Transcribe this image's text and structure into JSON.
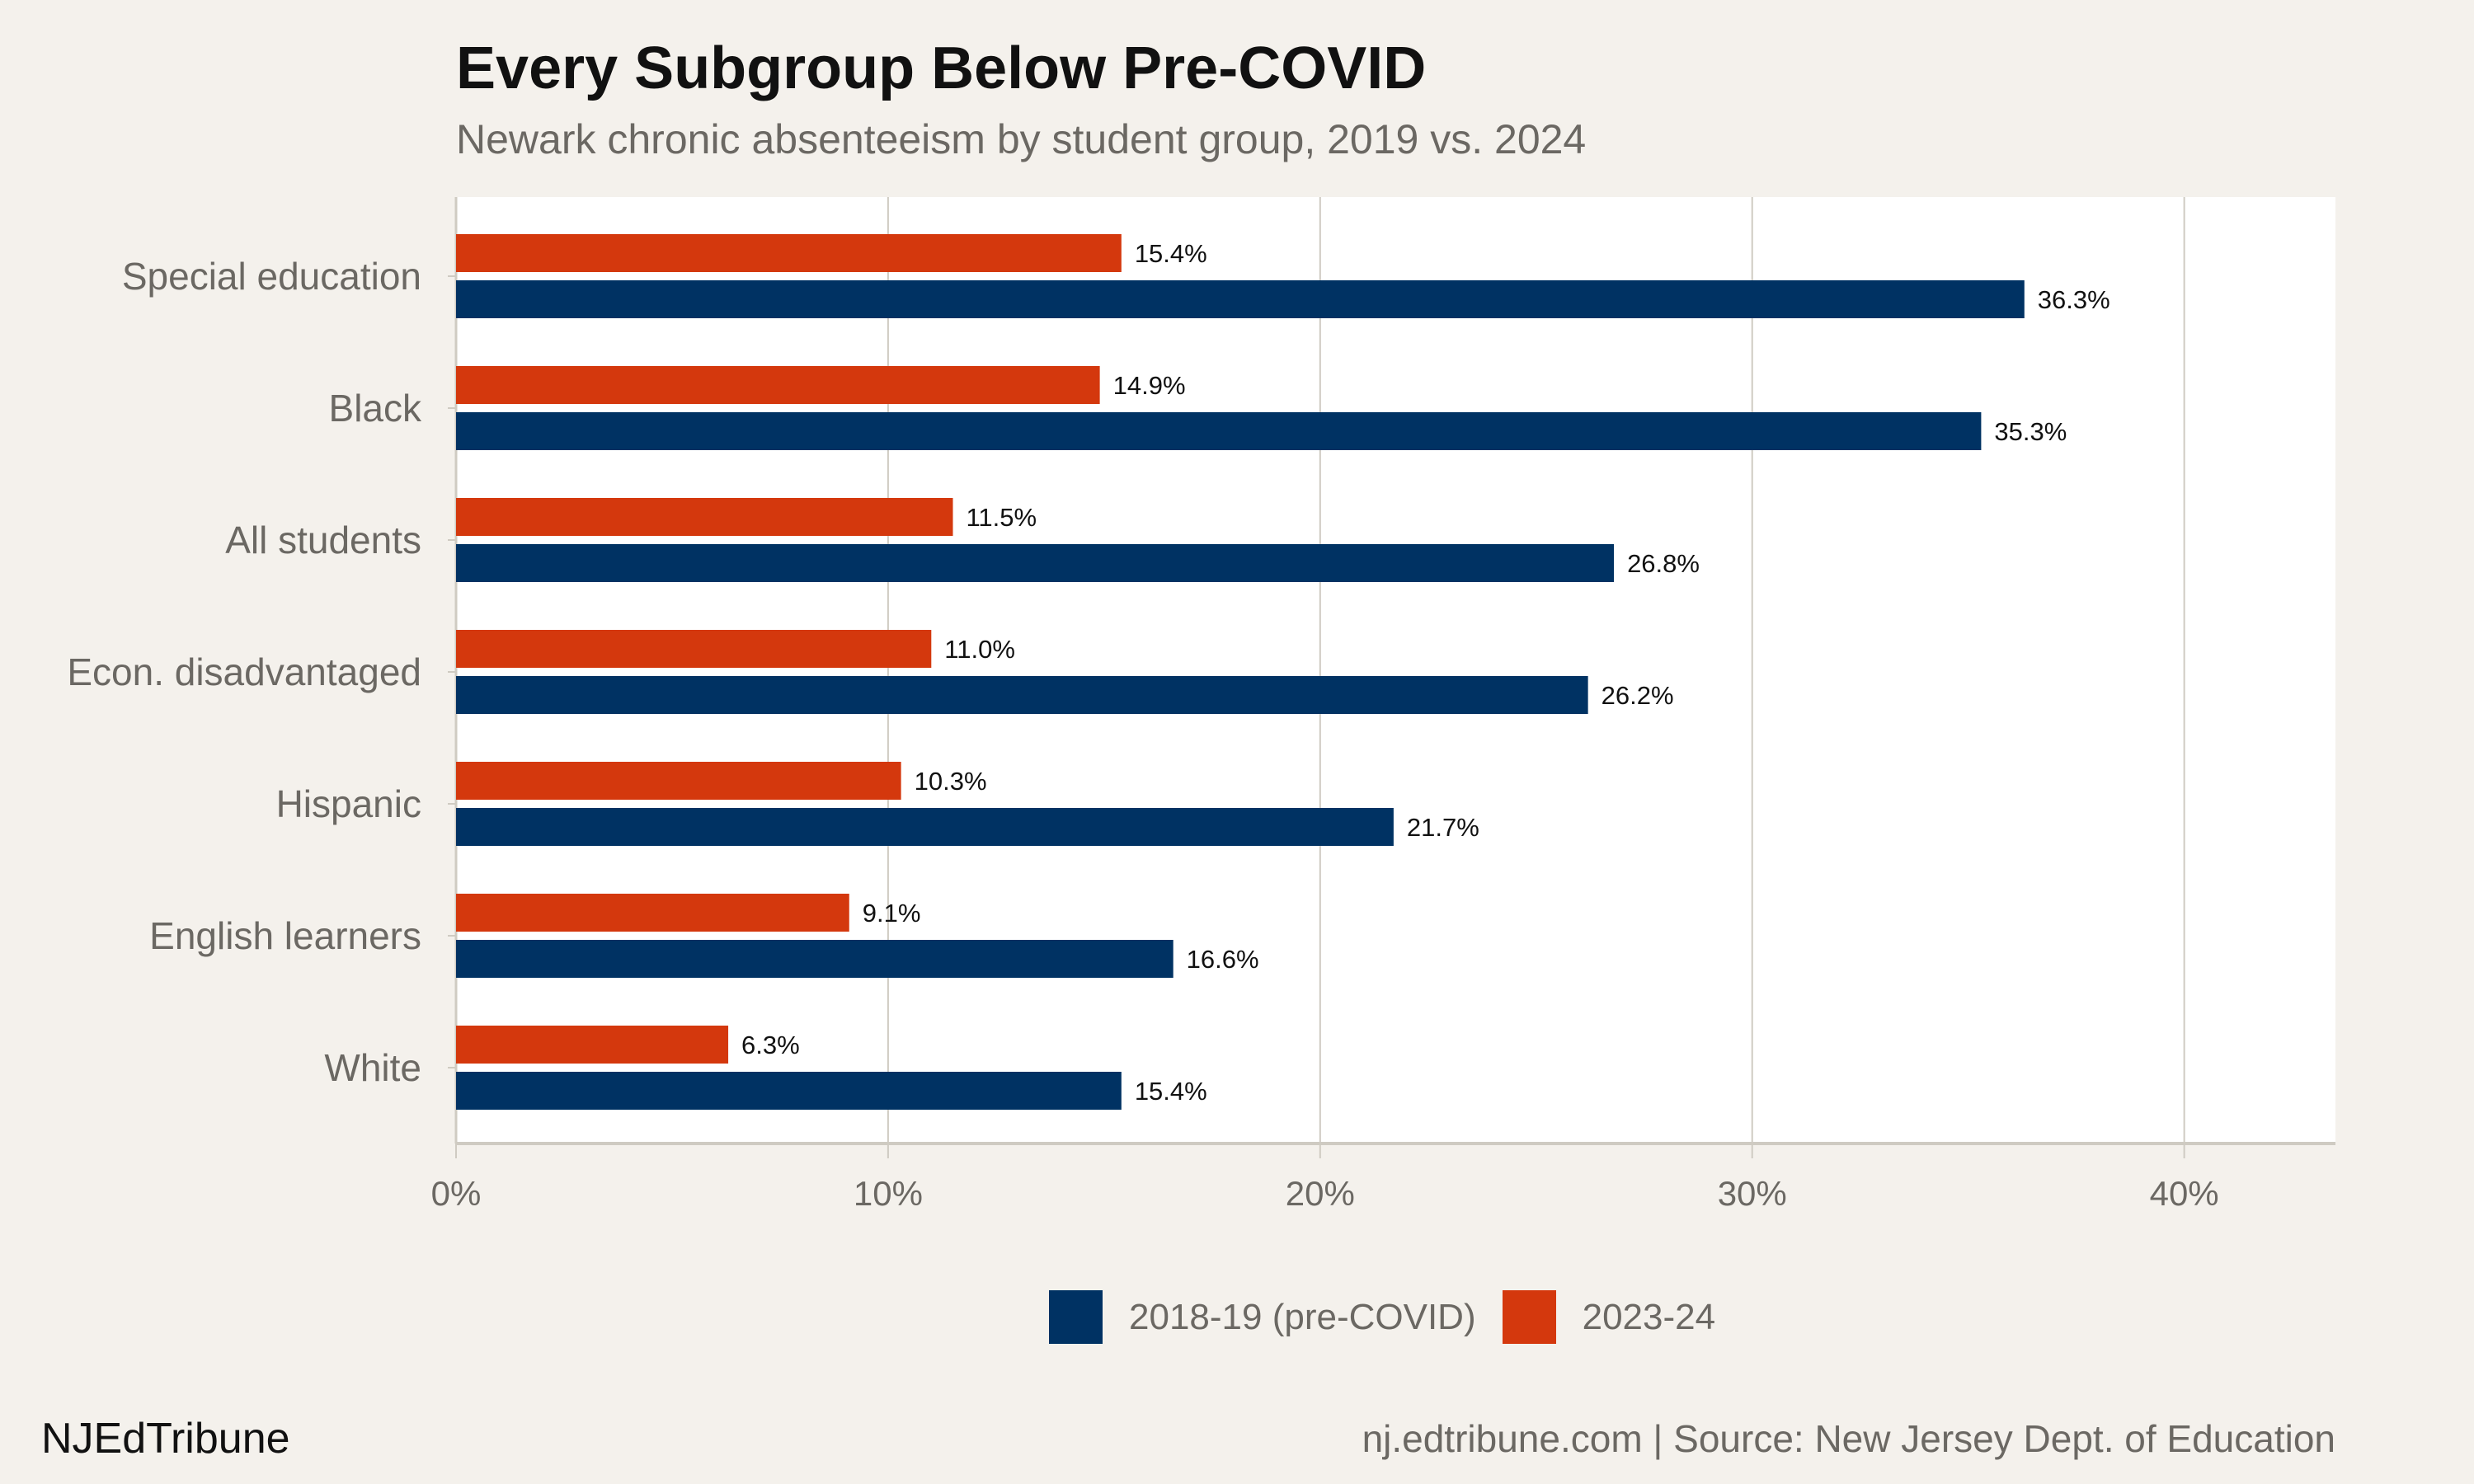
{
  "header": {
    "title": "Every Subgroup Below Pre-COVID",
    "subtitle": "Newark chronic absenteeism by student group, 2019 vs. 2024"
  },
  "chart_data": {
    "type": "bar",
    "orientation": "horizontal",
    "categories": [
      "Special education",
      "Black",
      "All students",
      "Econ. disadvantaged",
      "Hispanic",
      "English learners",
      "White"
    ],
    "series": [
      {
        "name": "2023-24",
        "color": "#d4380d",
        "values": [
          15.4,
          14.9,
          11.5,
          11.0,
          10.3,
          9.1,
          6.3
        ],
        "labels": [
          "15.4%",
          "14.9%",
          "11.5%",
          "11.0%",
          "10.3%",
          "9.1%",
          "6.3%"
        ]
      },
      {
        "name": "2018-19 (pre-COVID)",
        "color": "#003263",
        "values": [
          36.3,
          35.3,
          26.8,
          26.2,
          21.7,
          16.6,
          15.4
        ],
        "labels": [
          "36.3%",
          "35.3%",
          "26.8%",
          "26.2%",
          "21.7%",
          "16.6%",
          "15.4%"
        ]
      }
    ],
    "xlim": [
      0,
      43.5
    ],
    "xticks": [
      0,
      10,
      20,
      30,
      40
    ],
    "xtick_labels": [
      "0%",
      "10%",
      "20%",
      "30%",
      "40%"
    ],
    "xlabel": "",
    "ylabel": "",
    "grid": "vertical",
    "legend_position": "bottom"
  },
  "legend": {
    "items": [
      {
        "label": "2018-19 (pre-COVID)",
        "color": "#003263"
      },
      {
        "label": "2023-24",
        "color": "#d4380d"
      }
    ]
  },
  "footer": {
    "brand": "NJEdTribune",
    "source": "nj.edtribune.com | Source: New Jersey Dept. of Education"
  }
}
